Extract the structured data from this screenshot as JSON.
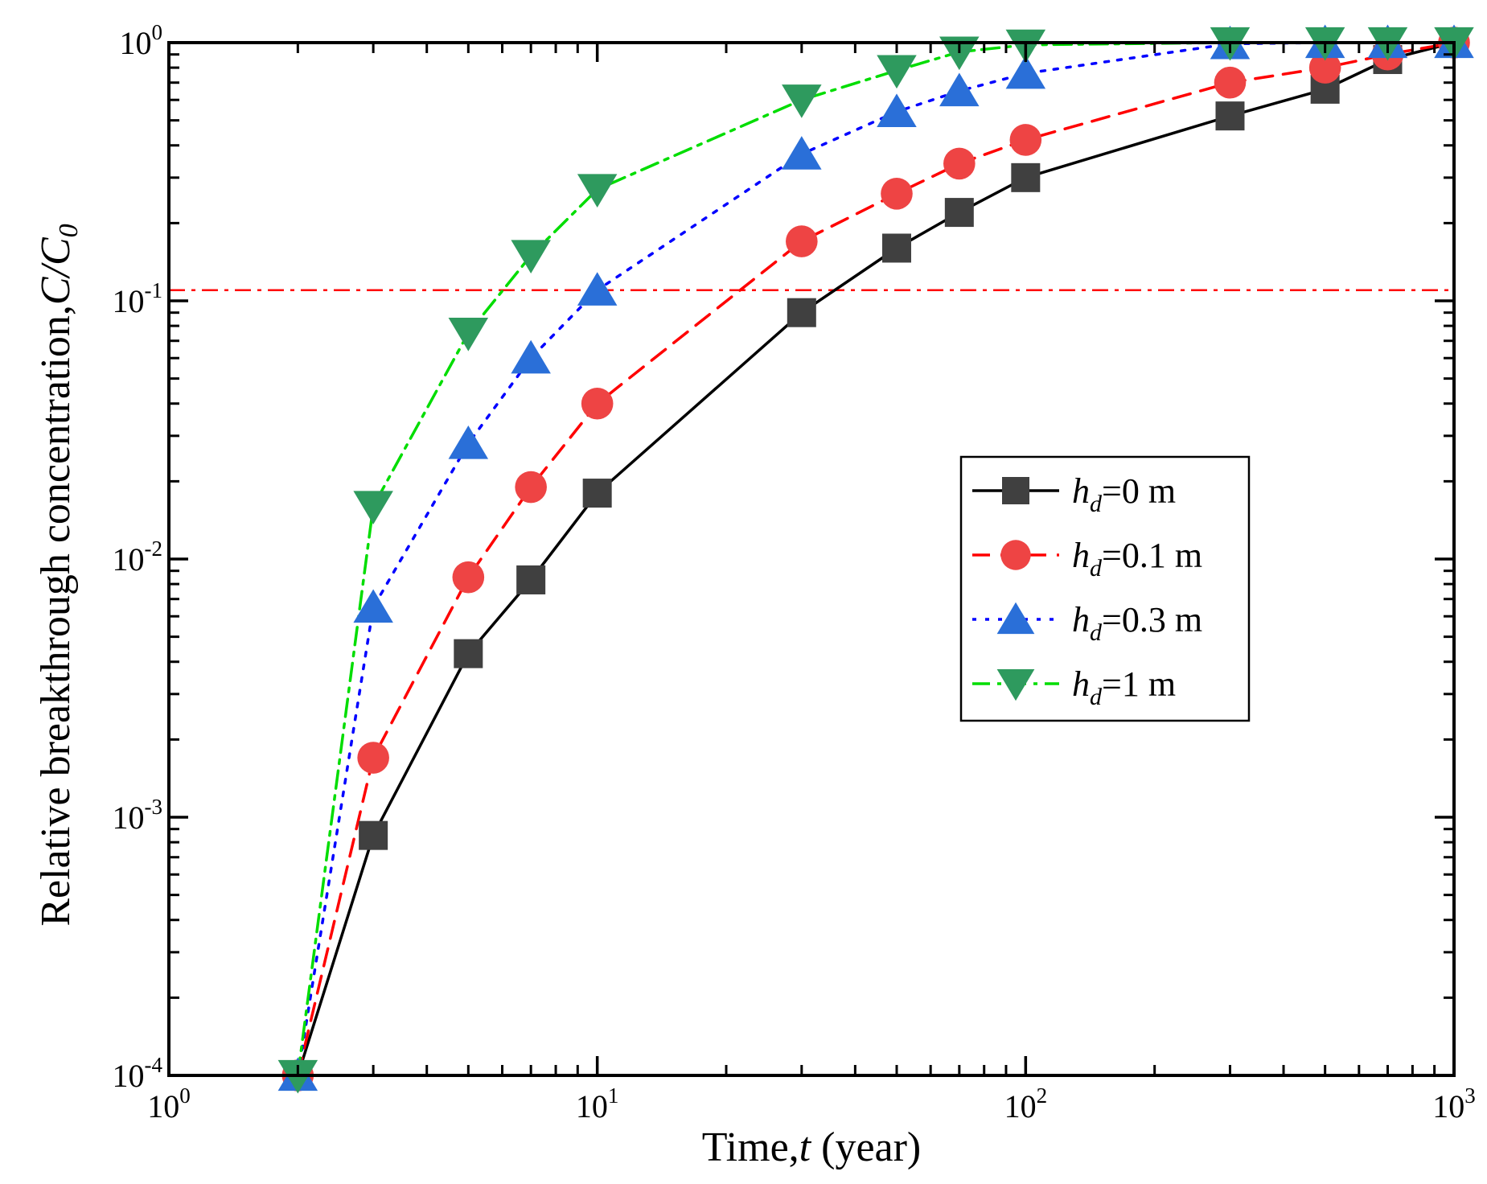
{
  "chart_data": {
    "type": "line",
    "xscale": "log",
    "yscale": "log",
    "xlim": [
      1,
      1000
    ],
    "ylim": [
      0.0001,
      1
    ],
    "xlabel": {
      "prefix": "Time,",
      "var": "t",
      "suffix": " (year)"
    },
    "ylabel": {
      "prefix": "Relative breakthrough concentration,",
      "var": "C/C",
      "sub": "0"
    },
    "x_ticks": [
      {
        "base": "10",
        "exp": "0"
      },
      {
        "base": "10",
        "exp": "1"
      },
      {
        "base": "10",
        "exp": "2"
      },
      {
        "base": "10",
        "exp": "3"
      }
    ],
    "y_ticks": [
      {
        "base": "10",
        "exp": "-4"
      },
      {
        "base": "10",
        "exp": "-3"
      },
      {
        "base": "10",
        "exp": "-2"
      },
      {
        "base": "10",
        "exp": "-1"
      },
      {
        "base": "10",
        "exp": "0"
      }
    ],
    "threshold": {
      "y": 0.11,
      "color": "#ff0000",
      "style": "dash-dot"
    },
    "legend_position": "center-right",
    "series": [
      {
        "name": "hd=0 m",
        "label_var": "h",
        "label_sub": "d",
        "label_text": "=0 m",
        "color": "#000000",
        "marker_color": "#404040",
        "marker": "square",
        "dash": "solid",
        "x": [
          2,
          3,
          5,
          7,
          10,
          30,
          50,
          70,
          100,
          300,
          500,
          700,
          1000
        ],
        "y": [
          0.0001,
          0.00085,
          0.0043,
          0.0083,
          0.018,
          0.09,
          0.16,
          0.22,
          0.3,
          0.52,
          0.66,
          0.86,
          1.0
        ]
      },
      {
        "name": "hd=0.1 m",
        "label_var": "h",
        "label_sub": "d",
        "label_text": "=0.1 m",
        "color": "#ff0000",
        "marker_color": "#ee4444",
        "marker": "circle",
        "dash": "dashed",
        "x": [
          2,
          3,
          5,
          7,
          10,
          30,
          50,
          70,
          100,
          300,
          500,
          700,
          1000
        ],
        "y": [
          0.0001,
          0.0017,
          0.0085,
          0.019,
          0.04,
          0.17,
          0.26,
          0.34,
          0.42,
          0.7,
          0.8,
          0.9,
          1.0
        ]
      },
      {
        "name": "hd=0.3 m",
        "label_var": "h",
        "label_sub": "d",
        "label_text": "=0.3 m",
        "color": "#0000ff",
        "marker_color": "#2a6fd8",
        "marker": "triangle-up",
        "dash": "dotted",
        "x": [
          2,
          3,
          5,
          7,
          10,
          30,
          50,
          70,
          100,
          300,
          500,
          700,
          1000
        ],
        "y": [
          0.0001,
          0.0065,
          0.028,
          0.06,
          0.11,
          0.37,
          0.54,
          0.65,
          0.76,
          0.99,
          1.0,
          1.0,
          1.0
        ]
      },
      {
        "name": "hd=1 m",
        "label_var": "h",
        "label_sub": "d",
        "label_text": "=1 m",
        "color": "#00dd00",
        "marker_color": "#2e9a5e",
        "marker": "triangle-down",
        "dash": "dash-dot",
        "x": [
          2,
          3,
          5,
          7,
          10,
          30,
          50,
          70,
          100,
          300,
          500,
          700,
          1000
        ],
        "y": [
          0.0001,
          0.016,
          0.075,
          0.15,
          0.27,
          0.6,
          0.78,
          0.92,
          0.98,
          1.0,
          1.0,
          1.0,
          1.0
        ]
      }
    ]
  }
}
